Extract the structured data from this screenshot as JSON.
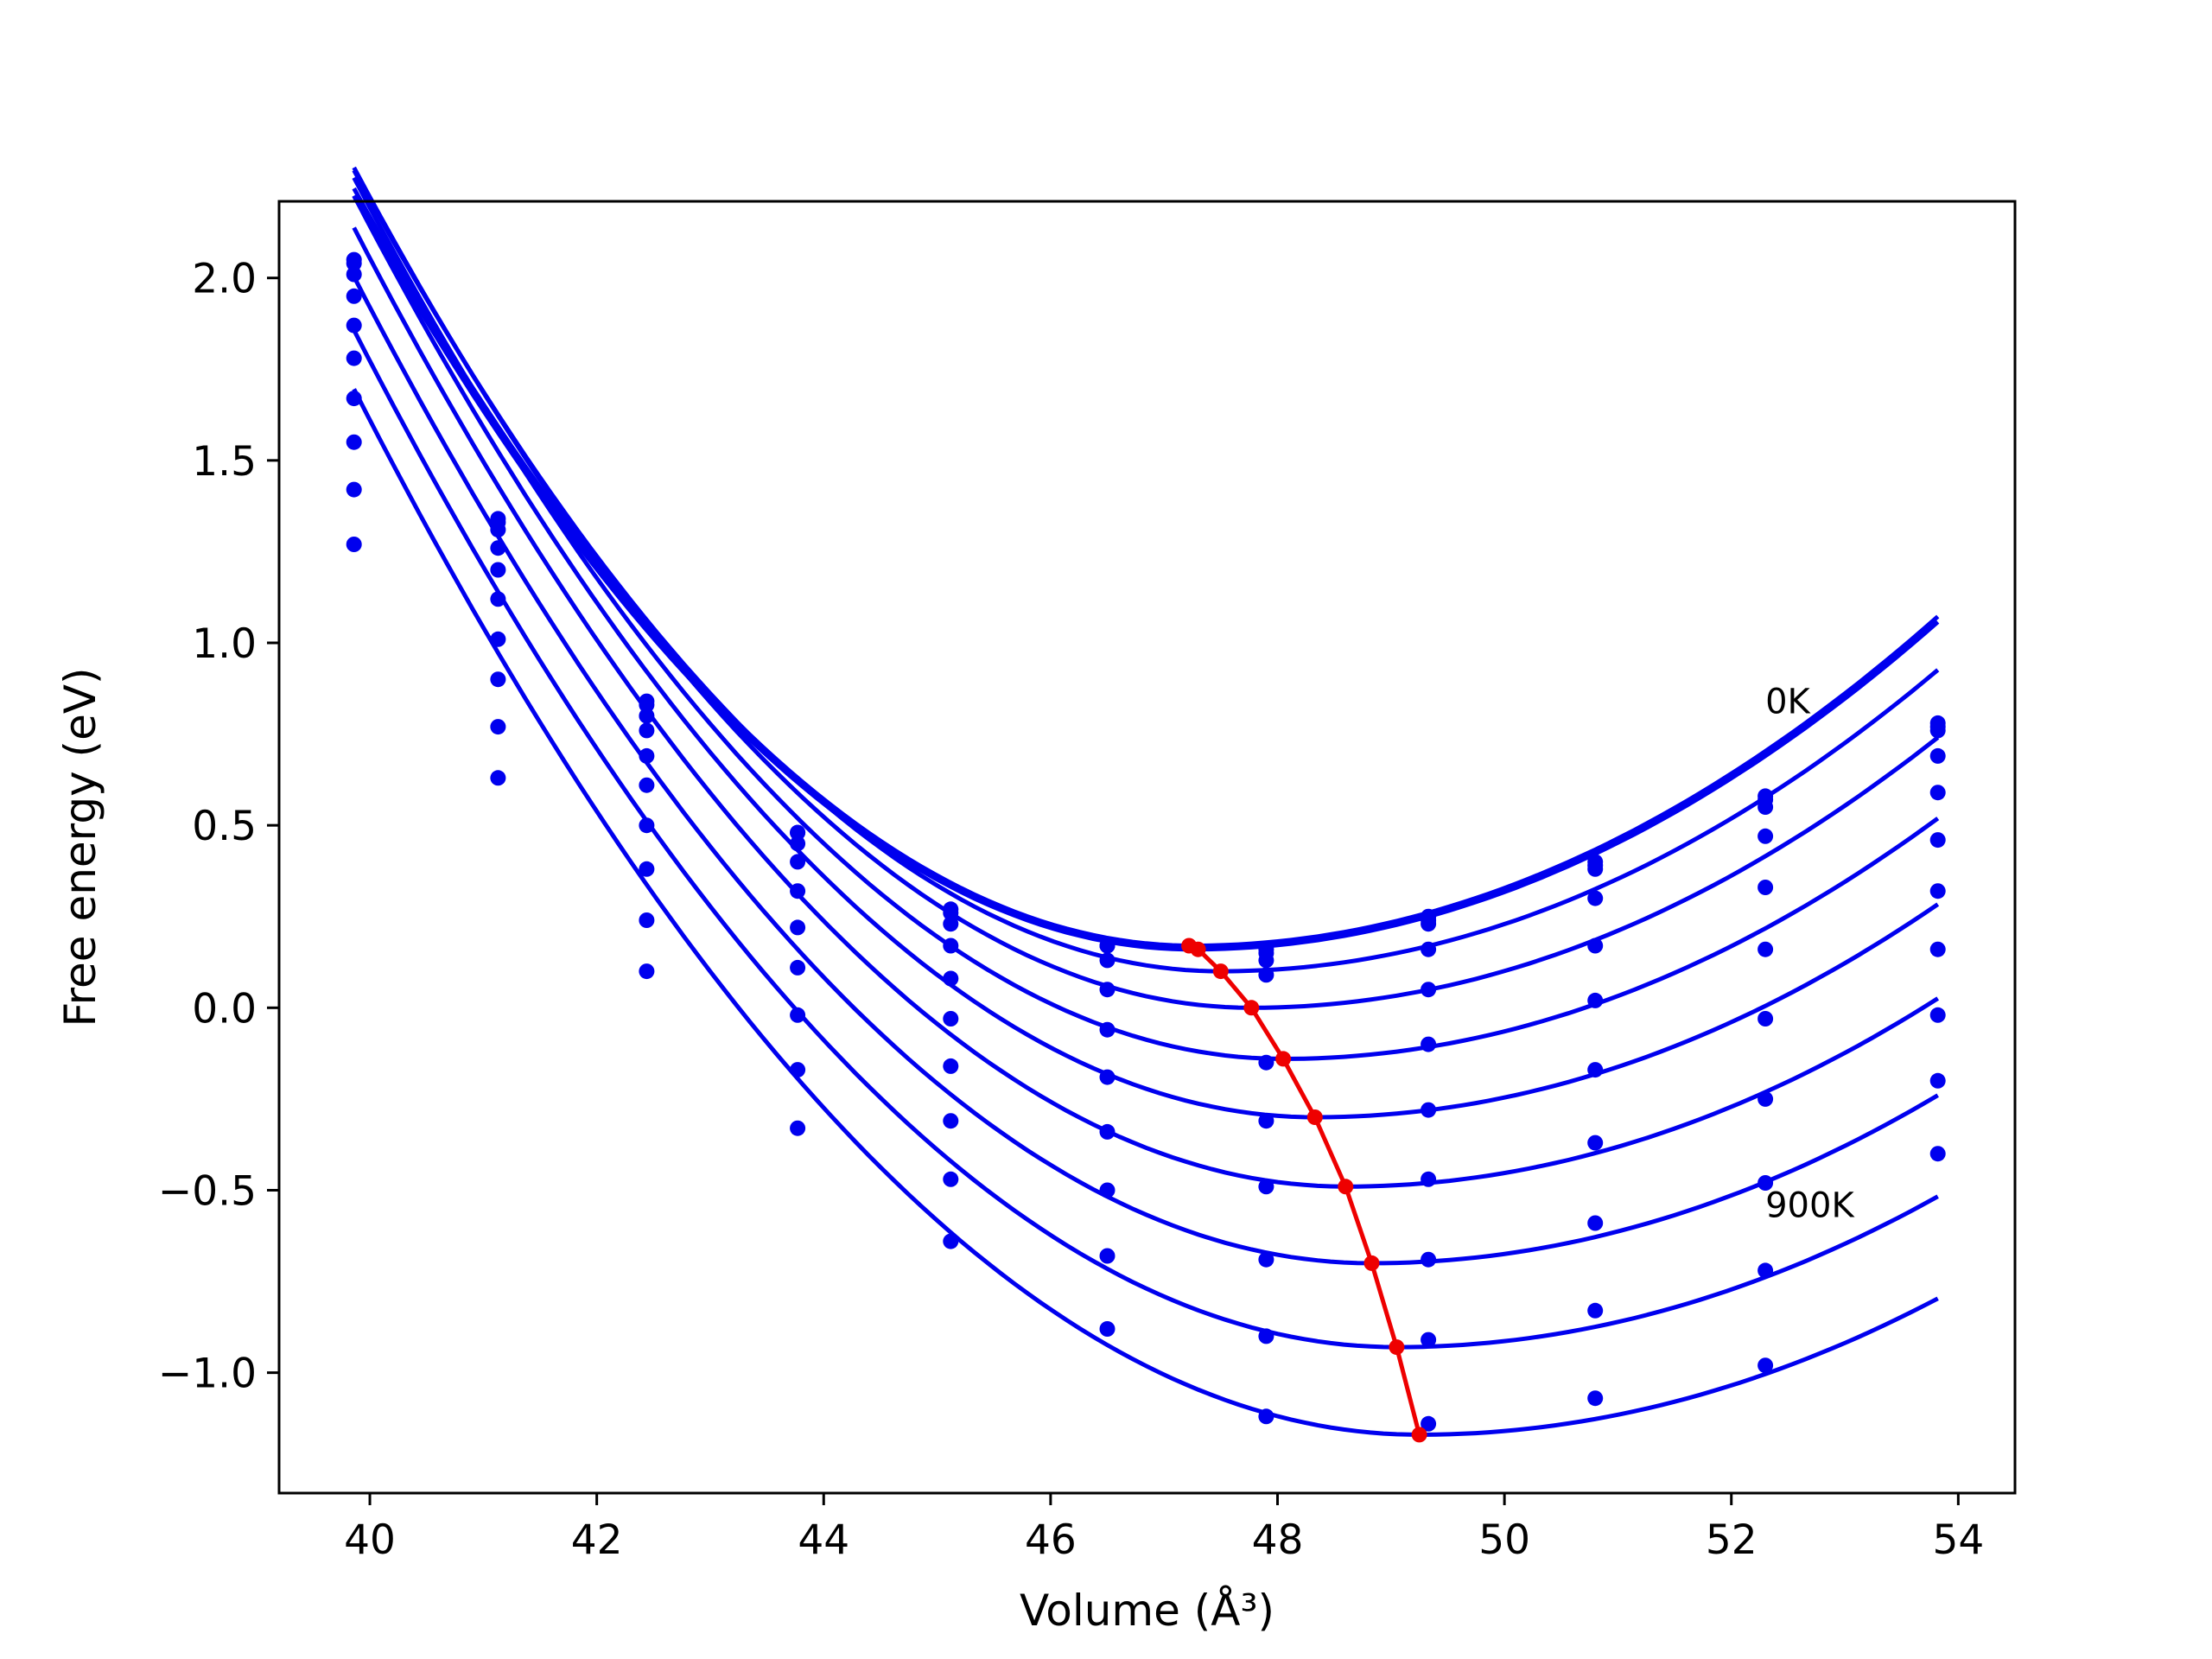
{
  "chart_data": {
    "type": "line",
    "title": "",
    "xlabel": "Volume (Å³)",
    "ylabel": "Free energy (eV)",
    "xlim": [
      39.2,
      54.5
    ],
    "ylim": [
      -1.33,
      2.21
    ],
    "x_ticks": [
      "40",
      "42",
      "44",
      "46",
      "48",
      "50",
      "52",
      "54"
    ],
    "x_tick_values": [
      40,
      42,
      44,
      46,
      48,
      50,
      52,
      54
    ],
    "y_ticks": [
      "−1.0",
      "−0.5",
      "0.0",
      "0.5",
      "1.0",
      "1.5",
      "2.0"
    ],
    "y_tick_values": [
      -1.0,
      -0.5,
      0.0,
      0.5,
      1.0,
      1.5,
      2.0
    ],
    "grid": false,
    "annotations": [
      {
        "text": "0K",
        "x": 52.3,
        "y": 0.84
      },
      {
        "text": "900K",
        "x": 52.3,
        "y": -0.54
      }
    ],
    "volumes": [
      39.86,
      41.13,
      42.44,
      43.77,
      45.12,
      46.5,
      47.9,
      49.33,
      50.8,
      52.3,
      53.82
    ],
    "series": [
      {
        "name": "",
        "points": [
          2.05,
          1.34,
          0.84,
          0.48,
          0.27,
          0.17,
          0.16,
          0.25,
          0.4,
          0.58,
          0.78
        ]
      },
      {
        "name": "",
        "points": [
          2.04,
          1.33,
          0.83,
          0.48,
          0.26,
          0.17,
          0.15,
          0.24,
          0.39,
          0.57,
          0.77
        ]
      },
      {
        "name": "",
        "points": [
          2.01,
          1.31,
          0.8,
          0.45,
          0.23,
          0.13,
          0.13,
          0.23,
          0.38,
          0.55,
          0.76
        ]
      },
      {
        "name": "",
        "points": [
          1.95,
          1.26,
          0.76,
          0.4,
          0.17,
          0.05,
          0.09,
          0.16,
          0.3,
          0.47,
          0.69
        ]
      },
      {
        "name": "",
        "points": [
          1.87,
          1.2,
          0.69,
          0.32,
          0.08,
          -0.06,
          -0.15,
          0.05,
          0.17,
          0.33,
          0.59
        ]
      },
      {
        "name": "",
        "points": [
          1.78,
          1.12,
          0.61,
          0.22,
          -0.03,
          -0.19,
          -0.31,
          -0.1,
          0.02,
          0.16,
          0.46
        ]
      },
      {
        "name": "",
        "points": [
          1.67,
          1.01,
          0.5,
          0.11,
          -0.16,
          -0.34,
          -0.49,
          -0.28,
          -0.17,
          -0.03,
          0.32
        ]
      },
      {
        "name": "",
        "points": [
          1.55,
          0.9,
          0.38,
          -0.02,
          -0.31,
          -0.5,
          -0.69,
          -0.47,
          -0.37,
          -0.25,
          0.16
        ]
      },
      {
        "name": "",
        "points": [
          1.42,
          0.77,
          0.24,
          -0.17,
          -0.47,
          -0.68,
          -0.9,
          -0.69,
          -0.59,
          -0.48,
          -0.02
        ]
      },
      {
        "name": "",
        "points": [
          1.27,
          0.63,
          0.1,
          -0.33,
          -0.64,
          -0.88,
          -1.12,
          -0.91,
          -0.83,
          -0.72,
          -0.2
        ]
      },
      {
        "name": "",
        "points": [
          null,
          null,
          null,
          null,
          null,
          null,
          null,
          -1.14,
          -1.07,
          -0.98,
          -0.4
        ]
      }
    ],
    "fits": [
      {
        "a": 0.038,
        "v0": 47.25,
        "e0": 0.17
      },
      {
        "a": 0.0378,
        "v0": 47.25,
        "e0": 0.16
      },
      {
        "a": 0.0376,
        "v0": 47.5,
        "e0": 0.1
      },
      {
        "a": 0.0368,
        "v0": 47.77,
        "e0": 0.0
      },
      {
        "a": 0.036,
        "v0": 48.05,
        "e0": -0.14
      },
      {
        "a": 0.0352,
        "v0": 48.33,
        "e0": -0.3
      },
      {
        "a": 0.0344,
        "v0": 48.6,
        "e0": -0.49
      },
      {
        "a": 0.0336,
        "v0": 48.83,
        "e0": -0.7
      },
      {
        "a": 0.033,
        "v0": 49.05,
        "e0": -0.93
      },
      {
        "a": 0.0325,
        "v0": 49.25,
        "e0": -1.17
      }
    ],
    "fit_range": [
      39.86,
      53.82
    ],
    "minima": {
      "name": "",
      "x": [
        47.22,
        47.3,
        47.5,
        47.77,
        48.05,
        48.33,
        48.6,
        48.83,
        49.05,
        49.25
      ],
      "y": [
        0.17,
        0.16,
        0.1,
        0.0,
        -0.14,
        -0.3,
        -0.49,
        -0.7,
        -0.93,
        -1.17
      ]
    },
    "colors": {
      "curves": "#0000ee",
      "points": "#0000ee",
      "minima": "#ee0000"
    }
  }
}
